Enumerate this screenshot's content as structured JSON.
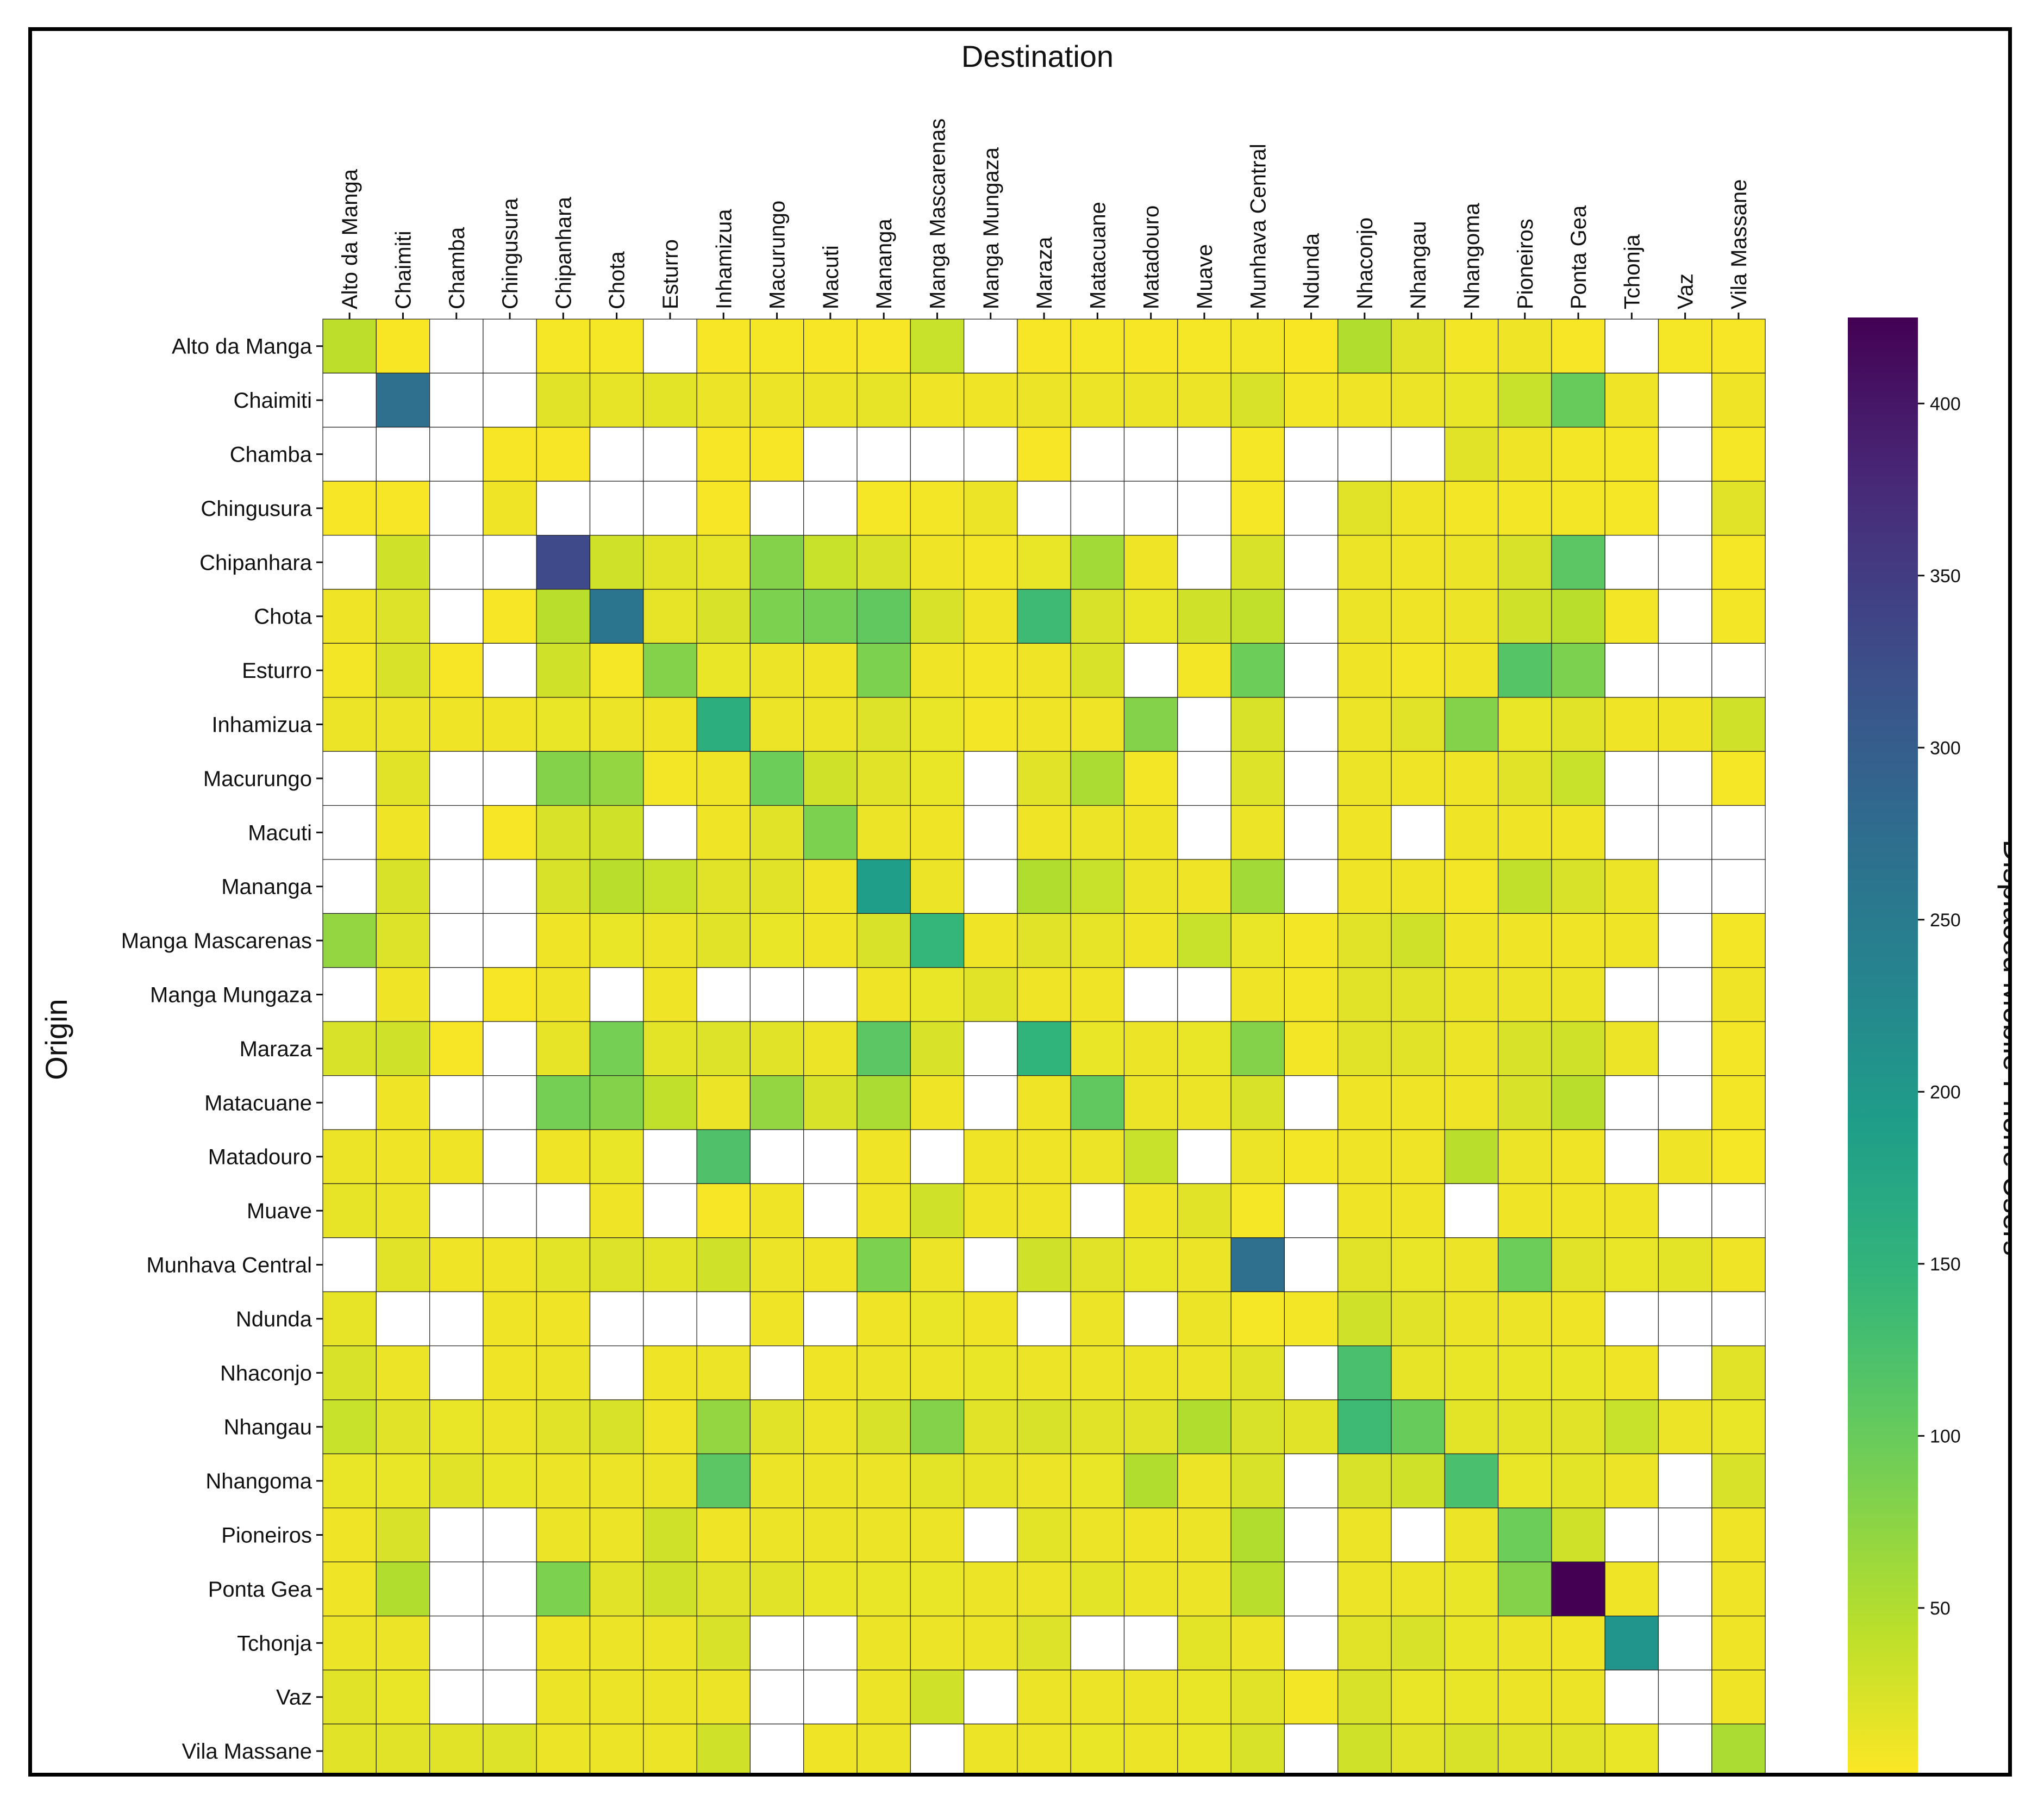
{
  "chart_data": {
    "type": "heatmap",
    "title": "",
    "xlabel": "Destination",
    "ylabel": "Origin",
    "x_categories": [
      "Alto da Manga",
      "Chaimiti",
      "Chamba",
      "Chingusura",
      "Chipanhara",
      "Chota",
      "Esturro",
      "Inhamizua",
      "Macurungo",
      "Macuti",
      "Mananga",
      "Manga Mascarenas",
      "Manga Mungaza",
      "Maraza",
      "Matacuane",
      "Matadouro",
      "Muave",
      "Munhava Central",
      "Ndunda",
      "Nhaconjo",
      "Nhangau",
      "Nhangoma",
      "Pioneiros",
      "Ponta Gea",
      "Tchonja",
      "Vaz",
      "Vila  Massane"
    ],
    "y_categories": [
      "Alto da Manga",
      "Chaimiti",
      "Chamba",
      "Chingusura",
      "Chipanhara",
      "Chota",
      "Esturro",
      "Inhamizua",
      "Macurungo",
      "Macuti",
      "Mananga",
      "Manga Mascarenas",
      "Manga Mungaza",
      "Maraza",
      "Matacuane",
      "Matadouro",
      "Muave",
      "Munhava Central",
      "Ndunda",
      "Nhaconjo",
      "Nhangau",
      "Nhangoma",
      "Pioneiros",
      "Ponta Gea",
      "Tchonja",
      "Vaz",
      "Vila  Massane"
    ],
    "colorbar": {
      "label": "Displaced Mobile Phone Users",
      "range": [
        1,
        425
      ],
      "ticks": [
        50,
        100,
        150,
        200,
        250,
        300,
        350,
        400
      ],
      "colormap": "viridis_r"
    },
    "missing_color": "#ffffff",
    "values": [
      [
        42,
        4,
        null,
        null,
        6,
        6,
        null,
        5,
        6,
        5,
        5,
        35,
        null,
        5,
        6,
        5,
        6,
        8,
        4,
        50,
        20,
        8,
        10,
        5,
        null,
        6,
        5
      ],
      [
        null,
        270,
        null,
        null,
        20,
        15,
        18,
        12,
        12,
        12,
        15,
        10,
        10,
        12,
        12,
        12,
        12,
        25,
        8,
        10,
        12,
        14,
        35,
        100,
        10,
        null,
        10
      ],
      [
        null,
        null,
        null,
        5,
        5,
        null,
        null,
        5,
        5,
        null,
        null,
        null,
        null,
        5,
        null,
        null,
        null,
        6,
        null,
        null,
        null,
        20,
        10,
        8,
        6,
        null,
        6
      ],
      [
        5,
        5,
        null,
        10,
        null,
        null,
        null,
        5,
        null,
        null,
        6,
        8,
        12,
        null,
        null,
        null,
        null,
        6,
        null,
        20,
        10,
        8,
        8,
        8,
        6,
        null,
        20
      ],
      [
        null,
        30,
        null,
        null,
        330,
        30,
        20,
        15,
        80,
        35,
        25,
        10,
        8,
        14,
        60,
        10,
        null,
        25,
        null,
        12,
        10,
        12,
        25,
        110,
        null,
        null,
        6
      ],
      [
        10,
        22,
        null,
        5,
        45,
        260,
        15,
        25,
        85,
        90,
        105,
        25,
        10,
        135,
        25,
        14,
        30,
        40,
        null,
        12,
        10,
        12,
        30,
        45,
        8,
        null,
        8
      ],
      [
        8,
        25,
        5,
        null,
        30,
        6,
        80,
        14,
        12,
        10,
        85,
        10,
        8,
        10,
        25,
        null,
        8,
        95,
        null,
        10,
        8,
        10,
        115,
        85,
        null,
        null,
        null
      ],
      [
        12,
        12,
        10,
        10,
        14,
        12,
        10,
        160,
        12,
        12,
        22,
        14,
        8,
        10,
        10,
        80,
        null,
        25,
        null,
        12,
        20,
        80,
        14,
        20,
        10,
        10,
        30
      ],
      [
        null,
        20,
        null,
        null,
        80,
        70,
        8,
        10,
        95,
        30,
        20,
        14,
        null,
        20,
        55,
        8,
        null,
        22,
        null,
        12,
        10,
        10,
        20,
        35,
        null,
        null,
        6
      ],
      [
        null,
        10,
        null,
        5,
        25,
        30,
        null,
        10,
        20,
        85,
        12,
        10,
        null,
        10,
        12,
        10,
        null,
        12,
        null,
        10,
        null,
        10,
        10,
        10,
        null,
        null,
        null
      ],
      [
        null,
        25,
        null,
        null,
        25,
        45,
        35,
        20,
        20,
        10,
        190,
        12,
        null,
        50,
        35,
        12,
        10,
        60,
        null,
        10,
        10,
        8,
        40,
        25,
        12,
        null,
        null
      ],
      [
        70,
        22,
        null,
        null,
        10,
        14,
        12,
        20,
        14,
        10,
        25,
        145,
        10,
        20,
        15,
        10,
        35,
        14,
        8,
        20,
        30,
        10,
        10,
        10,
        10,
        null,
        8
      ],
      [
        null,
        10,
        null,
        5,
        10,
        null,
        10,
        null,
        null,
        null,
        10,
        14,
        20,
        10,
        10,
        null,
        null,
        10,
        8,
        20,
        20,
        12,
        12,
        12,
        null,
        null,
        10
      ],
      [
        25,
        30,
        5,
        null,
        15,
        90,
        18,
        22,
        20,
        12,
        110,
        25,
        null,
        150,
        14,
        12,
        14,
        80,
        8,
        20,
        20,
        12,
        25,
        30,
        12,
        null,
        8
      ],
      [
        null,
        10,
        null,
        null,
        90,
        80,
        40,
        12,
        70,
        25,
        55,
        10,
        null,
        10,
        105,
        12,
        12,
        25,
        null,
        10,
        10,
        10,
        25,
        45,
        null,
        null,
        8
      ],
      [
        12,
        10,
        10,
        null,
        10,
        14,
        null,
        120,
        null,
        null,
        10,
        null,
        10,
        10,
        12,
        35,
        null,
        12,
        8,
        10,
        10,
        45,
        12,
        10,
        null,
        10,
        6
      ],
      [
        15,
        12,
        null,
        null,
        null,
        10,
        null,
        5,
        10,
        null,
        10,
        30,
        10,
        10,
        null,
        10,
        20,
        6,
        null,
        10,
        10,
        null,
        10,
        10,
        10,
        null,
        null
      ],
      [
        null,
        20,
        10,
        10,
        18,
        22,
        18,
        30,
        12,
        10,
        85,
        12,
        null,
        30,
        20,
        14,
        12,
        270,
        null,
        20,
        14,
        12,
        95,
        20,
        14,
        18,
        10
      ],
      [
        15,
        null,
        null,
        10,
        10,
        null,
        null,
        null,
        10,
        null,
        10,
        14,
        10,
        null,
        12,
        null,
        12,
        6,
        8,
        30,
        20,
        12,
        12,
        10,
        null,
        null,
        null
      ],
      [
        25,
        12,
        null,
        10,
        12,
        null,
        10,
        12,
        null,
        10,
        12,
        12,
        14,
        12,
        12,
        12,
        12,
        20,
        null,
        125,
        15,
        14,
        14,
        14,
        10,
        null,
        20
      ],
      [
        35,
        20,
        14,
        12,
        20,
        25,
        10,
        70,
        20,
        12,
        25,
        80,
        20,
        25,
        20,
        20,
        50,
        25,
        20,
        135,
        100,
        18,
        18,
        20,
        35,
        12,
        14
      ],
      [
        14,
        14,
        20,
        14,
        12,
        12,
        12,
        110,
        12,
        12,
        12,
        18,
        15,
        12,
        14,
        50,
        12,
        25,
        null,
        25,
        30,
        125,
        14,
        18,
        12,
        null,
        25
      ],
      [
        10,
        25,
        null,
        null,
        12,
        12,
        30,
        10,
        12,
        12,
        12,
        12,
        null,
        18,
        12,
        10,
        12,
        50,
        null,
        12,
        null,
        12,
        95,
        30,
        null,
        null,
        10
      ],
      [
        10,
        50,
        null,
        null,
        85,
        20,
        30,
        20,
        20,
        14,
        14,
        14,
        12,
        12,
        18,
        12,
        12,
        45,
        null,
        12,
        12,
        14,
        80,
        425,
        10,
        null,
        10
      ],
      [
        12,
        12,
        null,
        null,
        10,
        12,
        12,
        25,
        null,
        null,
        12,
        12,
        12,
        22,
        null,
        null,
        18,
        12,
        null,
        20,
        25,
        14,
        12,
        10,
        205,
        null,
        10
      ],
      [
        20,
        14,
        null,
        null,
        12,
        12,
        12,
        12,
        null,
        null,
        12,
        30,
        null,
        12,
        12,
        12,
        14,
        20,
        8,
        25,
        14,
        14,
        12,
        12,
        null,
        null,
        10
      ],
      [
        20,
        20,
        20,
        22,
        12,
        12,
        12,
        30,
        null,
        10,
        12,
        null,
        12,
        12,
        14,
        12,
        14,
        25,
        null,
        30,
        20,
        25,
        20,
        20,
        14,
        null,
        55
      ]
    ]
  }
}
